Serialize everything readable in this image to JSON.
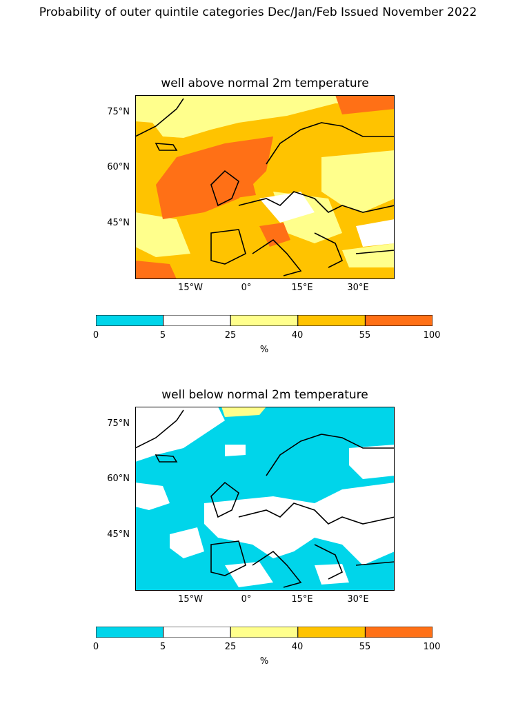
{
  "suptitle": "Probability of outer quintile categories Dec/Jan/Feb Issued November 2022",
  "lat_labels": [
    "75°N",
    "60°N",
    "45°N"
  ],
  "lon_labels": [
    "15°W",
    "0°",
    "15°E",
    "30°E"
  ],
  "colorbar": {
    "ticks": [
      "0",
      "5",
      "25",
      "40",
      "55",
      "100"
    ],
    "unit": "%",
    "colors": [
      "#00d5ea",
      "#ffffff",
      "#ffff8c",
      "#ffc300",
      "#ff7016"
    ]
  },
  "panels": [
    {
      "title": "well above normal 2m temperature",
      "key": "above"
    },
    {
      "title": "well below normal 2m temperature",
      "key": "below"
    }
  ]
}
